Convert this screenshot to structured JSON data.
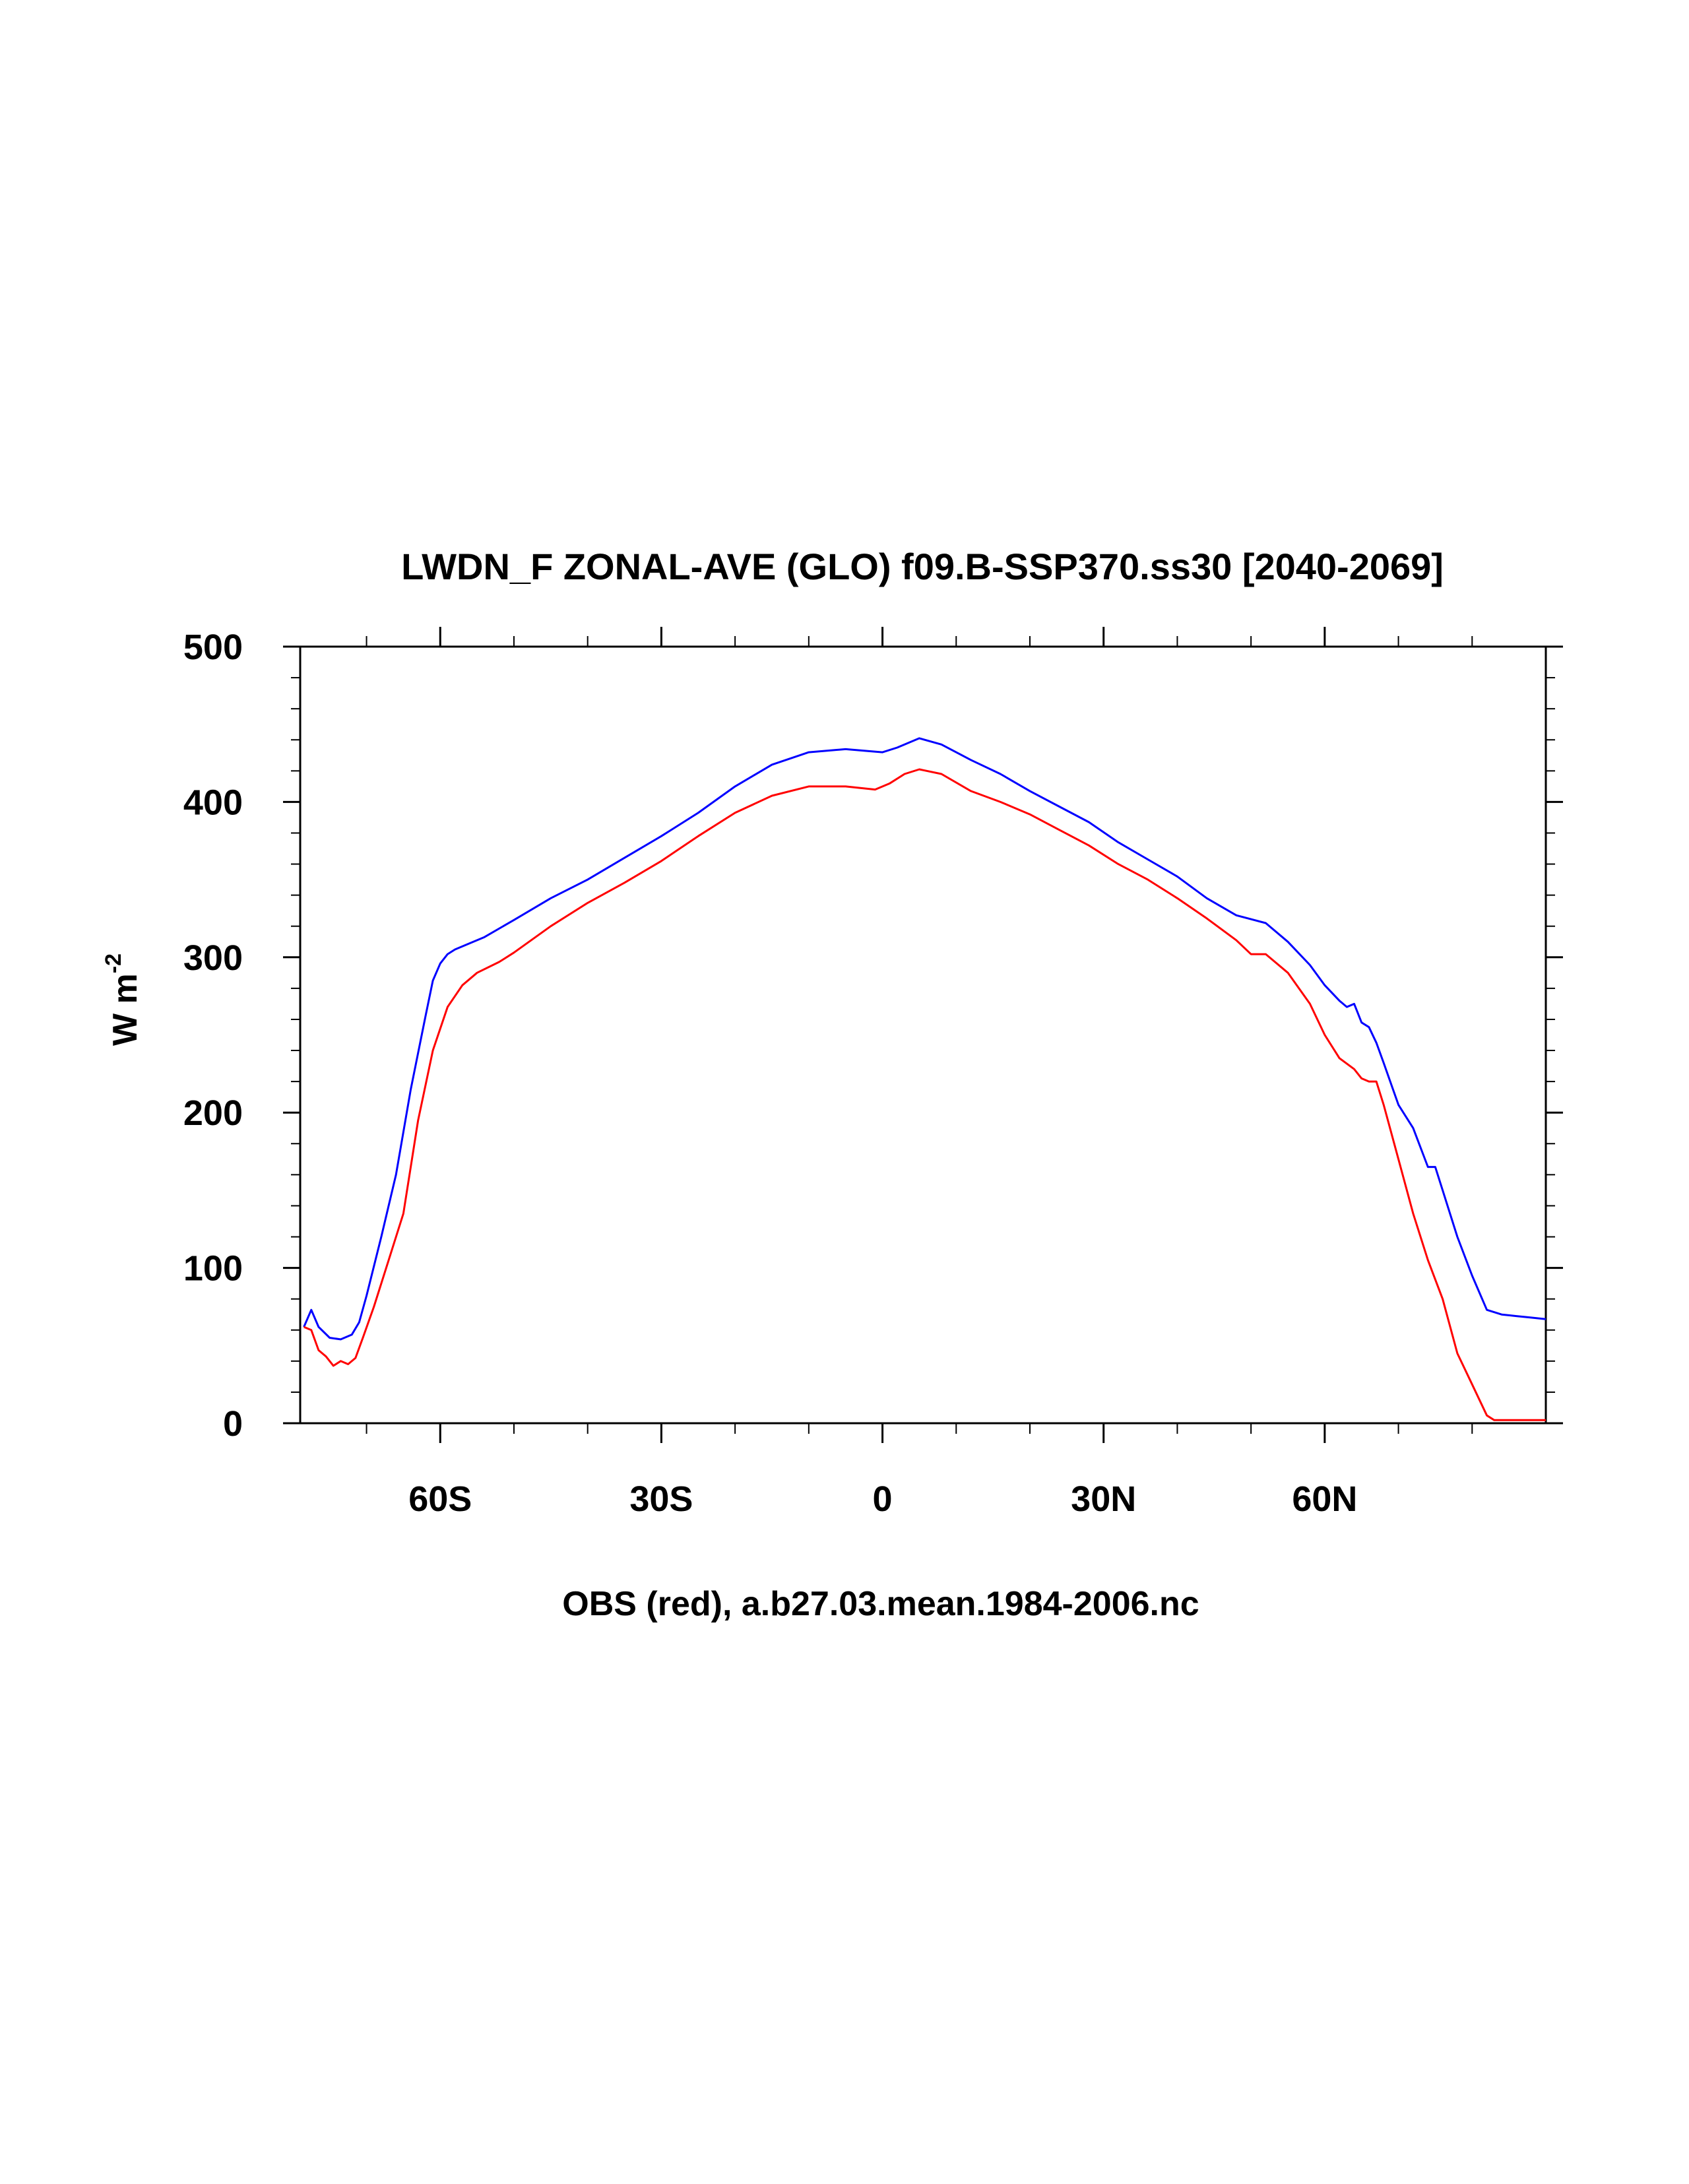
{
  "chart_data": {
    "type": "line",
    "title": "LWDN_F ZONAL-AVE (GLO) f09.B-SSP370.ss30 [2040-2069]",
    "xlabel": "OBS (red), a.b27.03.mean.1984-2006.nc",
    "ylabel_main": "W m",
    "ylabel_sup": "-2",
    "xlim": [
      -79,
      90
    ],
    "ylim": [
      0,
      500
    ],
    "x_ticks": [
      {
        "value": -60,
        "label": "60S"
      },
      {
        "value": -30,
        "label": "30S"
      },
      {
        "value": 0,
        "label": "0"
      },
      {
        "value": 30,
        "label": "30N"
      },
      {
        "value": 60,
        "label": "60N"
      }
    ],
    "y_ticks": [
      {
        "value": 0,
        "label": "0"
      },
      {
        "value": 100,
        "label": "100"
      },
      {
        "value": 200,
        "label": "200"
      },
      {
        "value": 300,
        "label": "300"
      },
      {
        "value": 400,
        "label": "400"
      },
      {
        "value": 500,
        "label": "500"
      }
    ],
    "grid": false,
    "series": [
      {
        "color": "#0000ff",
        "x": [
          -78.5,
          -77.5,
          -76.5,
          -75,
          -73.5,
          -72,
          -71,
          -70,
          -68,
          -66,
          -64,
          -62,
          -61,
          -60,
          -59,
          -58,
          -56,
          -54,
          -50,
          -45,
          -40,
          -35,
          -30,
          -25,
          -20,
          -15,
          -10,
          -5,
          0,
          2,
          5,
          8,
          12,
          16,
          20,
          24,
          28,
          32,
          36,
          40,
          44,
          48,
          52,
          55,
          58,
          60,
          62,
          63,
          64,
          65,
          66,
          67,
          68,
          70,
          72,
          74,
          75,
          76,
          78,
          80,
          82,
          84,
          86,
          88,
          90
        ],
        "y": [
          62,
          73,
          62,
          55,
          54,
          57,
          65,
          82,
          120,
          160,
          215,
          262,
          285,
          296,
          302,
          305,
          309,
          313,
          324,
          338,
          350,
          364,
          378,
          393,
          410,
          424,
          432,
          434,
          432,
          435,
          441,
          437,
          427,
          418,
          407,
          397,
          387,
          374,
          363,
          352,
          338,
          327,
          322,
          310,
          295,
          282,
          272,
          268,
          270,
          258,
          255,
          245,
          232,
          205,
          190,
          165,
          165,
          150,
          120,
          95,
          73,
          70,
          69,
          68,
          67
        ]
      },
      {
        "color": "#ff0000",
        "x": [
          -78.5,
          -77.5,
          -76.5,
          -75.5,
          -74.5,
          -73.5,
          -72.5,
          -71.5,
          -70.5,
          -69,
          -67,
          -65,
          -63,
          -61,
          -59,
          -57,
          -55,
          -52,
          -50,
          -45,
          -40,
          -35,
          -30,
          -25,
          -20,
          -15,
          -10,
          -5,
          -1,
          1,
          3,
          5,
          8,
          12,
          16,
          20,
          24,
          28,
          32,
          36,
          40,
          44,
          48,
          50,
          52,
          55,
          58,
          60,
          62,
          64,
          65,
          66,
          67,
          68,
          70,
          72,
          74,
          76,
          78,
          80,
          82,
          83,
          84,
          86,
          88,
          90
        ],
        "y": [
          62,
          60,
          47,
          43,
          37,
          40,
          38,
          42,
          55,
          75,
          105,
          135,
          195,
          240,
          268,
          282,
          290,
          297,
          303,
          320,
          335,
          348,
          362,
          378,
          393,
          404,
          410,
          410,
          408,
          412,
          418,
          421,
          418,
          407,
          400,
          392,
          382,
          372,
          360,
          350,
          338,
          325,
          311,
          302,
          302,
          290,
          270,
          250,
          235,
          228,
          222,
          220,
          220,
          205,
          170,
          135,
          105,
          80,
          45,
          25,
          5,
          2,
          2,
          2,
          2,
          2
        ]
      }
    ]
  }
}
